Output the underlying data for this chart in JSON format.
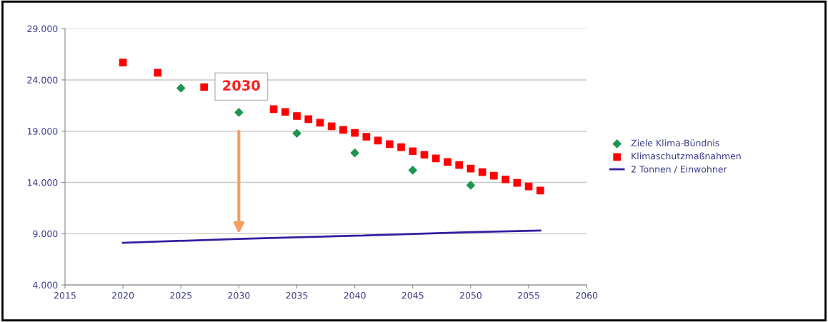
{
  "chart_data": {
    "type": "scatter",
    "series": [
      {
        "name": "Ziele Klima-Bündnis",
        "marker": "diamond",
        "color": "#1e9650",
        "x": [
          2025,
          2030,
          2035,
          2040,
          2045,
          2050
        ],
        "values": [
          23200,
          20830,
          18790,
          16880,
          15190,
          13730
        ]
      },
      {
        "name": "Klimaschutzmaßnahmen",
        "marker": "square",
        "color": "#ff0000",
        "x": [
          2020,
          2023,
          2027,
          2033,
          2034,
          2035,
          2036,
          2037,
          2038,
          2039,
          2040,
          2041,
          2042,
          2043,
          2044,
          2045,
          2046,
          2047,
          2048,
          2049,
          2050,
          2051,
          2052,
          2053,
          2054,
          2055,
          2056
        ],
        "values": [
          25700,
          24700,
          23300,
          21150,
          20880,
          20480,
          20180,
          19830,
          19480,
          19130,
          18830,
          18460,
          18090,
          17740,
          17440,
          17050,
          16700,
          16350,
          16000,
          15700,
          15350,
          15000,
          14650,
          14300,
          13960,
          13610,
          13210
        ]
      },
      {
        "name": "2 Tonnen / Einwohner",
        "type": "line",
        "marker": "none",
        "line_style": "solid",
        "color": "#3020a0",
        "x": [
          2020,
          2030,
          2040,
          2050,
          2056
        ],
        "values": [
          8110,
          8500,
          8800,
          9150,
          9310
        ]
      }
    ],
    "xlim": [
      2015,
      2060
    ],
    "xticks": [
      2015,
      2020,
      2025,
      2030,
      2035,
      2040,
      2045,
      2050,
      2055,
      2060
    ],
    "ylim": [
      4000,
      29000
    ],
    "yticks": [
      {
        "value": 4000,
        "label": "4.000"
      },
      {
        "value": 9000,
        "label": "9.000"
      },
      {
        "value": 14000,
        "label": "14.000"
      },
      {
        "value": 19000,
        "label": "19.000"
      },
      {
        "value": 24000,
        "label": "24.000"
      },
      {
        "value": 29000,
        "label": "29.000"
      }
    ],
    "grid": "y",
    "legend": "right",
    "annotations": [
      "2030"
    ]
  }
}
